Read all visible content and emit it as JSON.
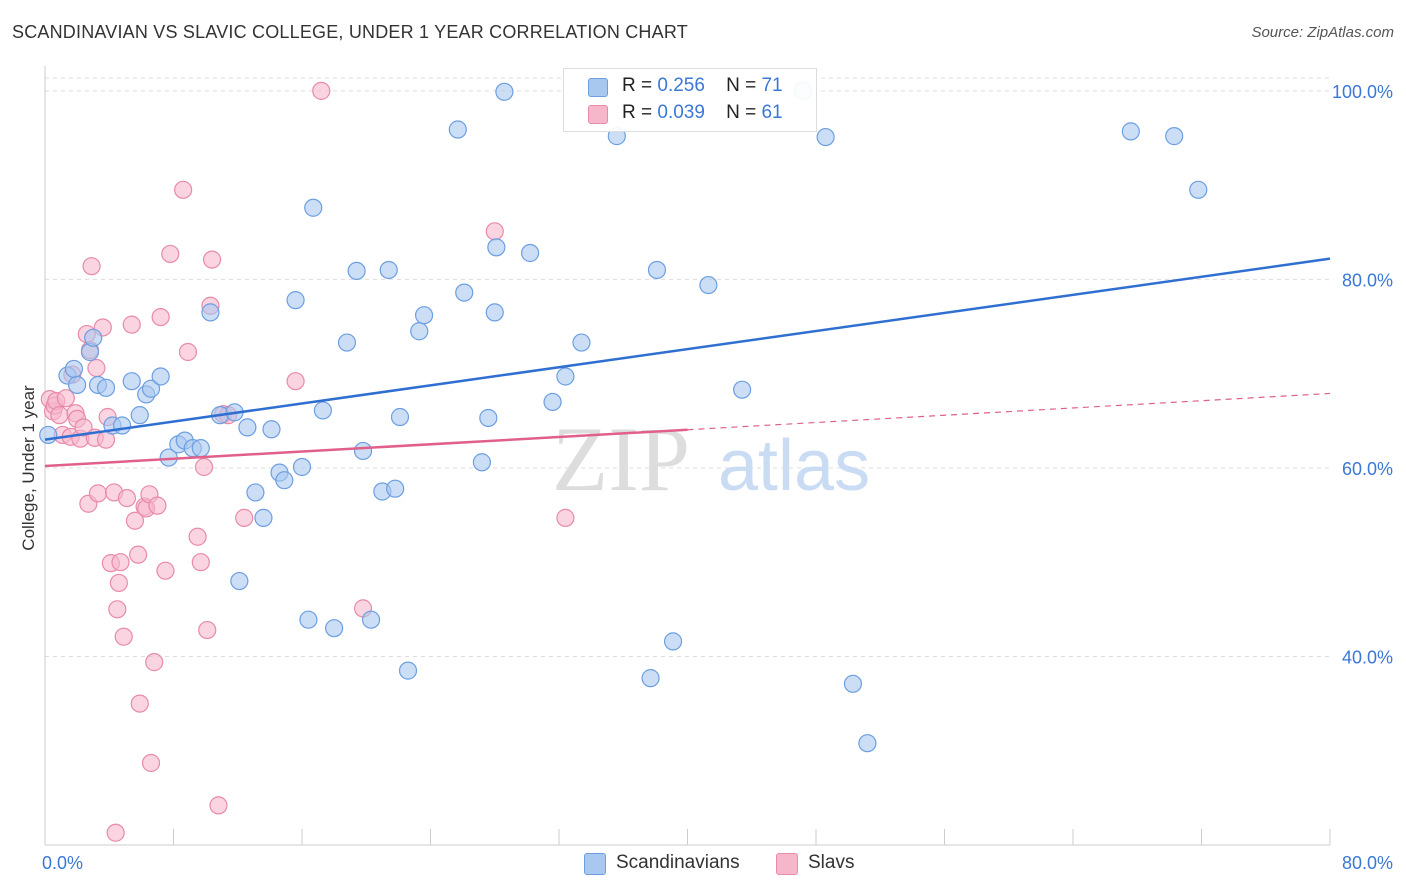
{
  "header": {
    "title": "SCANDINAVIAN VS SLAVIC COLLEGE, UNDER 1 YEAR CORRELATION CHART",
    "source": "Source: ZipAtlas.com"
  },
  "legend": {
    "rows": [
      {
        "r_label": "R =",
        "r_value": "0.256",
        "n_label": "N =",
        "n_value": "71"
      },
      {
        "r_label": "R =",
        "r_value": "0.039",
        "n_label": "N =",
        "n_value": "61"
      }
    ],
    "series_names": [
      "Scandinavians",
      "Slavs"
    ]
  },
  "watermark": {
    "part1": "ZIP",
    "part2": "atlas"
  },
  "colors": {
    "blue_fill": "#a9c8f0",
    "blue_stroke": "#6c9fe0",
    "blue_line": "#2f6fd1",
    "pink_fill": "#f6b7cb",
    "pink_stroke": "#e88aaa",
    "pink_line": "#e0608a",
    "grid": "#dddddd",
    "axis_text": "#3a78d6"
  },
  "chart_data": {
    "type": "scatter",
    "title": "SCANDINAVIAN VS SLAVIC COLLEGE, UNDER 1 YEAR CORRELATION CHART",
    "xlabel": "",
    "ylabel": "College, Under 1 year",
    "xlim": [
      0,
      80
    ],
    "ylim": [
      20,
      102
    ],
    "x_tick_labels": [
      "0.0%",
      "80.0%"
    ],
    "y_ticks": [
      40,
      60,
      80,
      100
    ],
    "y_tick_labels": [
      "40.0%",
      "60.0%",
      "80.0%",
      "100.0%"
    ],
    "grid": true,
    "series": [
      {
        "name": "Scandinavians",
        "r": 0.256,
        "n": 71,
        "trend": {
          "x": [
            0,
            80
          ],
          "y": [
            63.0,
            82.2
          ],
          "solid_to": 80
        },
        "points": [
          [
            0.2,
            63.5
          ],
          [
            1.4,
            69.8
          ],
          [
            1.8,
            70.5
          ],
          [
            2.0,
            68.8
          ],
          [
            2.8,
            72.3
          ],
          [
            3.0,
            73.8
          ],
          [
            3.3,
            68.8
          ],
          [
            3.8,
            68.5
          ],
          [
            4.2,
            64.5
          ],
          [
            4.8,
            64.5
          ],
          [
            5.4,
            69.2
          ],
          [
            5.9,
            65.6
          ],
          [
            6.3,
            67.8
          ],
          [
            6.6,
            68.4
          ],
          [
            7.2,
            69.7
          ],
          [
            7.7,
            61.1
          ],
          [
            8.3,
            62.5
          ],
          [
            8.7,
            62.9
          ],
          [
            9.2,
            62.1
          ],
          [
            9.7,
            62.1
          ],
          [
            10.3,
            76.5
          ],
          [
            10.9,
            65.6
          ],
          [
            11.8,
            65.9
          ],
          [
            12.1,
            48.0
          ],
          [
            12.6,
            64.3
          ],
          [
            13.1,
            57.4
          ],
          [
            13.6,
            54.7
          ],
          [
            14.1,
            64.1
          ],
          [
            14.6,
            59.5
          ],
          [
            14.9,
            58.7
          ],
          [
            15.6,
            77.8
          ],
          [
            16.0,
            60.1
          ],
          [
            16.4,
            43.9
          ],
          [
            16.7,
            87.6
          ],
          [
            17.3,
            66.1
          ],
          [
            18.0,
            43.0
          ],
          [
            18.8,
            73.3
          ],
          [
            19.4,
            80.9
          ],
          [
            19.8,
            61.8
          ],
          [
            20.3,
            43.9
          ],
          [
            21.0,
            57.5
          ],
          [
            21.4,
            81.0
          ],
          [
            21.8,
            57.8
          ],
          [
            22.1,
            65.4
          ],
          [
            22.6,
            38.5
          ],
          [
            23.3,
            74.5
          ],
          [
            23.6,
            76.2
          ],
          [
            25.7,
            95.9
          ],
          [
            26.1,
            78.6
          ],
          [
            27.2,
            60.6
          ],
          [
            27.6,
            65.3
          ],
          [
            28.0,
            76.5
          ],
          [
            28.1,
            83.4
          ],
          [
            28.6,
            99.9
          ],
          [
            30.2,
            82.8
          ],
          [
            31.6,
            67.0
          ],
          [
            32.4,
            69.7
          ],
          [
            33.4,
            73.3
          ],
          [
            35.6,
            95.2
          ],
          [
            37.7,
            37.7
          ],
          [
            38.1,
            81.0
          ],
          [
            39.1,
            41.6
          ],
          [
            41.3,
            79.4
          ],
          [
            43.4,
            68.3
          ],
          [
            47.2,
            100.0
          ],
          [
            48.6,
            95.1
          ],
          [
            50.3,
            37.1
          ],
          [
            51.2,
            30.8
          ],
          [
            67.6,
            95.7
          ],
          [
            70.3,
            95.2
          ],
          [
            71.8,
            89.5
          ]
        ]
      },
      {
        "name": "Slavs",
        "r": 0.039,
        "n": 61,
        "trend": {
          "x": [
            0,
            80
          ],
          "y": [
            60.2,
            67.9
          ],
          "solid_to": 40
        },
        "points": [
          [
            0.3,
            67.3
          ],
          [
            0.5,
            66.0
          ],
          [
            0.6,
            66.6
          ],
          [
            0.7,
            67.1
          ],
          [
            0.9,
            65.6
          ],
          [
            1.1,
            63.5
          ],
          [
            1.3,
            67.4
          ],
          [
            1.6,
            63.3
          ],
          [
            1.7,
            69.9
          ],
          [
            1.9,
            65.8
          ],
          [
            2.0,
            65.2
          ],
          [
            2.2,
            63.1
          ],
          [
            2.4,
            64.3
          ],
          [
            2.6,
            74.2
          ],
          [
            2.7,
            56.2
          ],
          [
            2.8,
            72.5
          ],
          [
            2.9,
            81.4
          ],
          [
            3.1,
            63.2
          ],
          [
            3.2,
            70.6
          ],
          [
            3.3,
            57.3
          ],
          [
            3.6,
            74.9
          ],
          [
            3.8,
            63.0
          ],
          [
            3.9,
            65.4
          ],
          [
            4.1,
            49.9
          ],
          [
            4.3,
            57.4
          ],
          [
            4.4,
            21.3
          ],
          [
            4.5,
            45.0
          ],
          [
            4.6,
            47.8
          ],
          [
            4.7,
            50.0
          ],
          [
            4.9,
            42.1
          ],
          [
            5.1,
            56.8
          ],
          [
            5.4,
            75.2
          ],
          [
            5.6,
            54.4
          ],
          [
            5.8,
            50.8
          ],
          [
            5.9,
            35.0
          ],
          [
            6.2,
            55.9
          ],
          [
            6.3,
            55.7
          ],
          [
            6.5,
            57.2
          ],
          [
            6.6,
            28.7
          ],
          [
            6.8,
            39.4
          ],
          [
            7.0,
            56.0
          ],
          [
            7.2,
            76.0
          ],
          [
            7.5,
            49.1
          ],
          [
            7.8,
            82.7
          ],
          [
            8.6,
            89.5
          ],
          [
            8.9,
            72.3
          ],
          [
            9.5,
            52.7
          ],
          [
            9.7,
            50.0
          ],
          [
            9.9,
            60.1
          ],
          [
            10.1,
            42.8
          ],
          [
            10.3,
            77.2
          ],
          [
            10.4,
            82.1
          ],
          [
            10.8,
            24.2
          ],
          [
            11.1,
            65.7
          ],
          [
            11.4,
            65.6
          ],
          [
            12.4,
            54.7
          ],
          [
            15.6,
            69.2
          ],
          [
            19.8,
            45.1
          ],
          [
            28.0,
            85.1
          ],
          [
            32.4,
            54.7
          ],
          [
            17.2,
            100.0
          ]
        ]
      }
    ]
  }
}
